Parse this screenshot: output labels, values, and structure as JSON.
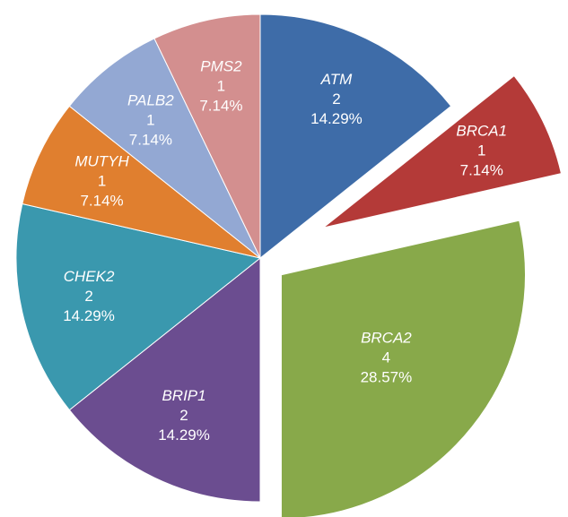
{
  "chart_data": {
    "type": "pie",
    "categories": [
      "ATM",
      "BRCA1",
      "BRCA2",
      "BRIP1",
      "CHEK2",
      "MUTYH",
      "PALB2",
      "PMS2"
    ],
    "values": [
      2,
      1,
      4,
      2,
      2,
      1,
      1,
      1
    ],
    "percent_labels": [
      "14.29%",
      "7.14%",
      "28.57%",
      "14.29%",
      "14.29%",
      "7.14%",
      "7.14%",
      "7.14%"
    ],
    "colors": [
      "#3e6ca8",
      "#b43a38",
      "#88a94a",
      "#6b4d90",
      "#3a98ae",
      "#e07f2f",
      "#93a8d3",
      "#d38f8f"
    ]
  }
}
